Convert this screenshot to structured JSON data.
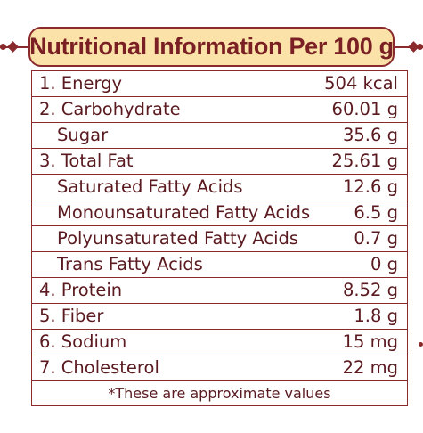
{
  "title": "Nutritional Information Per 100 g",
  "rows": [
    {
      "label": "1. Energy",
      "value": "504 kcal",
      "sub": false
    },
    {
      "label": "2. Carbohydrate",
      "value": "60.01 g",
      "sub": false
    },
    {
      "label": "Sugar",
      "value": "35.6 g",
      "sub": true
    },
    {
      "label": "3. Total Fat",
      "value": "25.61 g",
      "sub": false
    },
    {
      "label": "Saturated Fatty Acids",
      "value": "12.6 g",
      "sub": true
    },
    {
      "label": "Monounsaturated Fatty Acids",
      "value": "6.5 g",
      "sub": true
    },
    {
      "label": "Polyunsaturated Fatty Acids",
      "value": "0.7 g",
      "sub": true
    },
    {
      "label": "Trans Fatty Acids",
      "value": "0 g",
      "sub": true
    },
    {
      "label": "4. Protein",
      "value": "8.52 g",
      "sub": false
    },
    {
      "label": "5. Fiber",
      "value": "1.8 g",
      "sub": false
    },
    {
      "label": "6. Sodium",
      "value": "15 mg",
      "sub": false
    },
    {
      "label": "7. Cholesterol",
      "value": "22 mg",
      "sub": false
    }
  ],
  "note": "*These are approximate values",
  "colors": {
    "border": "#8b2a2c",
    "text": "#5a1a1f",
    "banner_fill": "#fbe2a8",
    "title_text": "#7a1f24"
  }
}
